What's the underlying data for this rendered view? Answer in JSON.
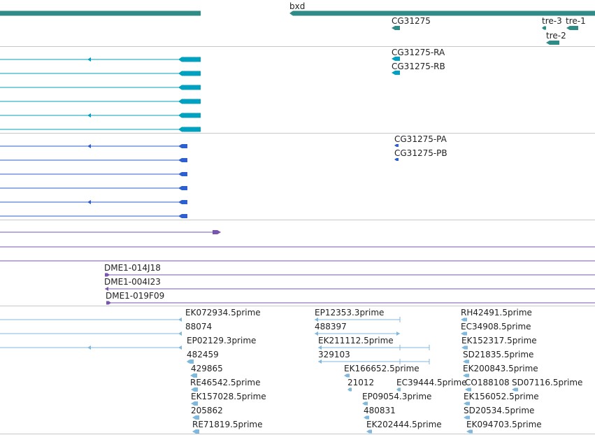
{
  "colors": {
    "gene": "#2e8b85",
    "transcript": "#00a0c0",
    "protein": "#2e5fd0",
    "clone": "#7a55b0",
    "est": "#80b8dc",
    "separator": "#c8c8c8",
    "text": "#222222"
  },
  "icons": {
    "strand_arrow": "arrowhead",
    "feature_glyph": "pointed-rectangle"
  },
  "genes": {
    "labels": [
      "bxd",
      "CG31275",
      "tre-3",
      "tre-1",
      "tre-2"
    ]
  },
  "transcripts": {
    "labels": [
      "CG31275-RA",
      "CG31275-RB"
    ]
  },
  "proteins": {
    "labels": [
      "CG31275-PA",
      "CG31275-PB"
    ]
  },
  "clones": {
    "labels": [
      "DME1-014J18",
      "DME1-004I23",
      "DME1-019F09"
    ]
  },
  "ests": {
    "labels": [
      "EK072934.5prime",
      "88074",
      "EP02129.3prime",
      "482459",
      "429865",
      "RE46542.5prime",
      "EK157028.5prime",
      "205862",
      "RE71819.5prime",
      "EP12353.3prime",
      "488397",
      "EK211112.5prime",
      "329103",
      "EK166652.5prime",
      "21012",
      "EC39444.5prime",
      "EP09054.3prime",
      "480831",
      "EK202444.5prime",
      "RH42491.5prime",
      "EC34908.5prime",
      "EK152317.5prime",
      "SD21835.5prime",
      "EK200843.5prime",
      "CO188108",
      "SD07116.5prime",
      "EK156052.5prime",
      "SD20534.5prime",
      "EK094703.5prime"
    ]
  }
}
